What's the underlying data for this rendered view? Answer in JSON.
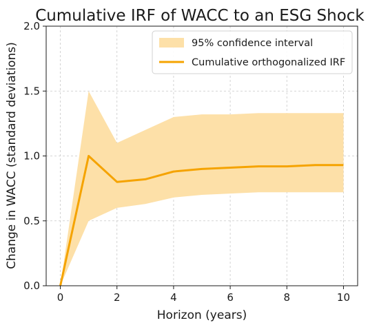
{
  "chart_data": {
    "type": "line",
    "title": "Cumulative IRF of WACC to an ESG Shock",
    "xlabel": "Horizon (years)",
    "ylabel": "Change in WACC (standard deviations)",
    "xlim": [
      -0.5,
      10.5
    ],
    "ylim": [
      0,
      2.0
    ],
    "xticks": [
      0,
      2,
      4,
      6,
      8,
      10
    ],
    "yticks": [
      0.0,
      0.5,
      1.0,
      1.5,
      2.0
    ],
    "xtick_labels": [
      "0",
      "2",
      "4",
      "6",
      "8",
      "10"
    ],
    "ytick_labels": [
      "0.0",
      "0.5",
      "1.0",
      "1.5",
      "2.0"
    ],
    "grid": true,
    "legend_position": "top-right",
    "x": [
      0,
      1,
      2,
      3,
      4,
      5,
      6,
      7,
      8,
      9,
      10
    ],
    "series": [
      {
        "name": "Cumulative orthogonalized IRF",
        "kind": "line",
        "color": "#f5a300",
        "values": [
          0.0,
          1.0,
          0.8,
          0.82,
          0.88,
          0.9,
          0.91,
          0.92,
          0.92,
          0.93,
          0.93
        ]
      }
    ],
    "band": {
      "name": "95% confidence interval",
      "color": "#fde0a8",
      "lower": [
        0.0,
        0.5,
        0.6,
        0.63,
        0.68,
        0.7,
        0.71,
        0.72,
        0.72,
        0.72,
        0.72
      ],
      "upper": [
        0.0,
        1.5,
        1.1,
        1.2,
        1.3,
        1.32,
        1.32,
        1.33,
        1.33,
        1.33,
        1.33
      ]
    }
  }
}
